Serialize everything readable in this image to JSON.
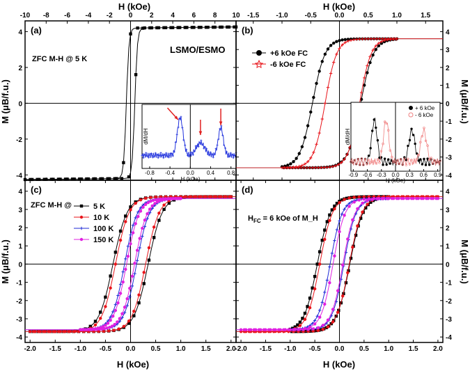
{
  "figure": {
    "top_xlabel_left": "H (kOe)",
    "top_xlabel_right": "H (kOe)",
    "bottom_xlabel_left": "H (kOe)",
    "bottom_xlabel_right": "H (kOe)",
    "ylabel_left_top": "M (μB/f.u.)",
    "ylabel_left_bottom": "M (μB/f.u.)",
    "ylabel_right_top": "M (μB/f.u.)",
    "ylabel_right_bottom": "M (μB/f.u.)"
  },
  "colors": {
    "black": "#000000",
    "red": "#e8141a",
    "blue": "#1e2ad6",
    "magenta": "#e020e0",
    "inset_blue": "#2233dd",
    "inset_arrow": "#e02020",
    "pink": "#f08080"
  },
  "chart_data": [
    {
      "type": "line",
      "panel": "(a)",
      "annotations": [
        "ZFC M-H @ 5 K",
        "LSMO/ESMO"
      ],
      "xlim": [
        -10,
        10
      ],
      "ylim": [
        -4.3,
        4.6
      ],
      "xticks": [
        -10,
        -8,
        -6,
        -4,
        -2,
        0,
        2,
        4,
        6,
        8,
        10
      ],
      "yticks": [
        -4,
        -2,
        0,
        2,
        4
      ],
      "series": [
        {
          "color": "black",
          "marker": "square",
          "Ms": 4.2,
          "Hc": 0.4,
          "width": 0.25,
          "slope": 0.006,
          "hmax": 10
        }
      ],
      "inset": {
        "xlabel": "H (kOe)",
        "ylabel": "dM/dH",
        "xticks": [
          -0.8,
          -0.4,
          0.0,
          0.4,
          0.8
        ],
        "xlim": [
          -0.95,
          0.9
        ],
        "peaks": [
          -0.2,
          0.2,
          0.6
        ],
        "series_color": "inset_blue"
      }
    },
    {
      "type": "line",
      "panel": "(b)",
      "xlim": [
        -1.8,
        1.8
      ],
      "ylim": [
        -4.3,
        4.6
      ],
      "xticks": [
        -1.5,
        -1.0,
        -0.5,
        0.0,
        0.5,
        1.0,
        1.5
      ],
      "yticks": [
        -4,
        -3,
        -2,
        -1,
        0,
        1,
        2,
        3,
        4
      ],
      "legend": [
        "+6 kOe FC",
        "-6 kOe FC"
      ],
      "series": [
        {
          "name": "+6 kOe FC",
          "color": "black",
          "marker": "circle",
          "Ms": 3.6,
          "Hc": 0.42,
          "width": 0.22,
          "shift": -0.05,
          "hmax": 1.0
        },
        {
          "name": "-6 kOe FC",
          "color": "red",
          "marker": "star",
          "Ms": 3.6,
          "Hc": 0.3,
          "width": 0.2,
          "shift": 0.05,
          "hmax": 1.0
        }
      ],
      "inset": {
        "xlabel": "H (kOe)",
        "ylabel": "dM/dH",
        "xticks": [
          -0.9,
          -0.6,
          -0.3,
          0.0,
          0.3,
          0.6,
          0.9
        ],
        "xlim": [
          -0.95,
          0.95
        ],
        "legend": [
          "+ 6 kOe",
          "- 6 kOe"
        ]
      }
    },
    {
      "type": "line",
      "panel": "(c)",
      "annotations": [
        "ZFC M-H @"
      ],
      "xlim": [
        -2.1,
        2.1
      ],
      "ylim": [
        -4.3,
        4.6
      ],
      "xticks": [
        -2.0,
        -1.5,
        -1.0,
        -0.5,
        0.0,
        0.5,
        1.0,
        1.5,
        2.0
      ],
      "yticks": [
        -4,
        -3,
        -2,
        -1,
        0,
        1,
        2,
        3,
        4
      ],
      "legend": [
        "5 K",
        "10 K",
        "100 K",
        "150 K"
      ],
      "series": [
        {
          "name": "5 K",
          "color": "black",
          "marker": "square",
          "Ms": 3.7,
          "Hc": 0.35,
          "width": 0.28,
          "hmax": 2.0
        },
        {
          "name": "10 K",
          "color": "red",
          "marker": "circle",
          "Ms": 3.7,
          "Hc": 0.3,
          "width": 0.27,
          "hmax": 2.0
        },
        {
          "name": "100 K",
          "color": "blue",
          "marker": "star",
          "Ms": 3.6,
          "Hc": 0.12,
          "width": 0.25,
          "hmax": 1.0
        },
        {
          "name": "150 K",
          "color": "magenta",
          "marker": "pentagon",
          "Ms": 3.6,
          "Hc": 0.08,
          "width": 0.25,
          "hmax": 1.0
        }
      ]
    },
    {
      "type": "line",
      "panel": "(d)",
      "annotations": [
        "H",
        "FC",
        " = 6 kOe of M_H"
      ],
      "xlim": [
        -2.1,
        2.1
      ],
      "ylim": [
        -4.3,
        4.6
      ],
      "xticks": [
        -2.0,
        -1.5,
        -1.0,
        -0.5,
        0.0,
        0.5,
        1.0,
        1.5,
        2.0
      ],
      "yticks": [
        -4,
        -3,
        -2,
        -1,
        0,
        1,
        2,
        3,
        4
      ],
      "series": [
        {
          "color": "black",
          "marker": "square",
          "Ms": 3.7,
          "Hc": 0.33,
          "width": 0.27,
          "shift": -0.12,
          "hmax": 1.0
        },
        {
          "color": "red",
          "marker": "circle",
          "Ms": 3.7,
          "Hc": 0.3,
          "width": 0.26,
          "shift": -0.1,
          "hmax": 2.0
        },
        {
          "color": "blue",
          "marker": "star",
          "Ms": 3.6,
          "Hc": 0.14,
          "width": 0.24,
          "shift": -0.05,
          "hmax": 1.0
        },
        {
          "color": "magenta",
          "marker": "pentagon",
          "Ms": 3.6,
          "Hc": 0.1,
          "width": 0.24,
          "shift": -0.03,
          "hmax": 2.0
        }
      ]
    }
  ]
}
